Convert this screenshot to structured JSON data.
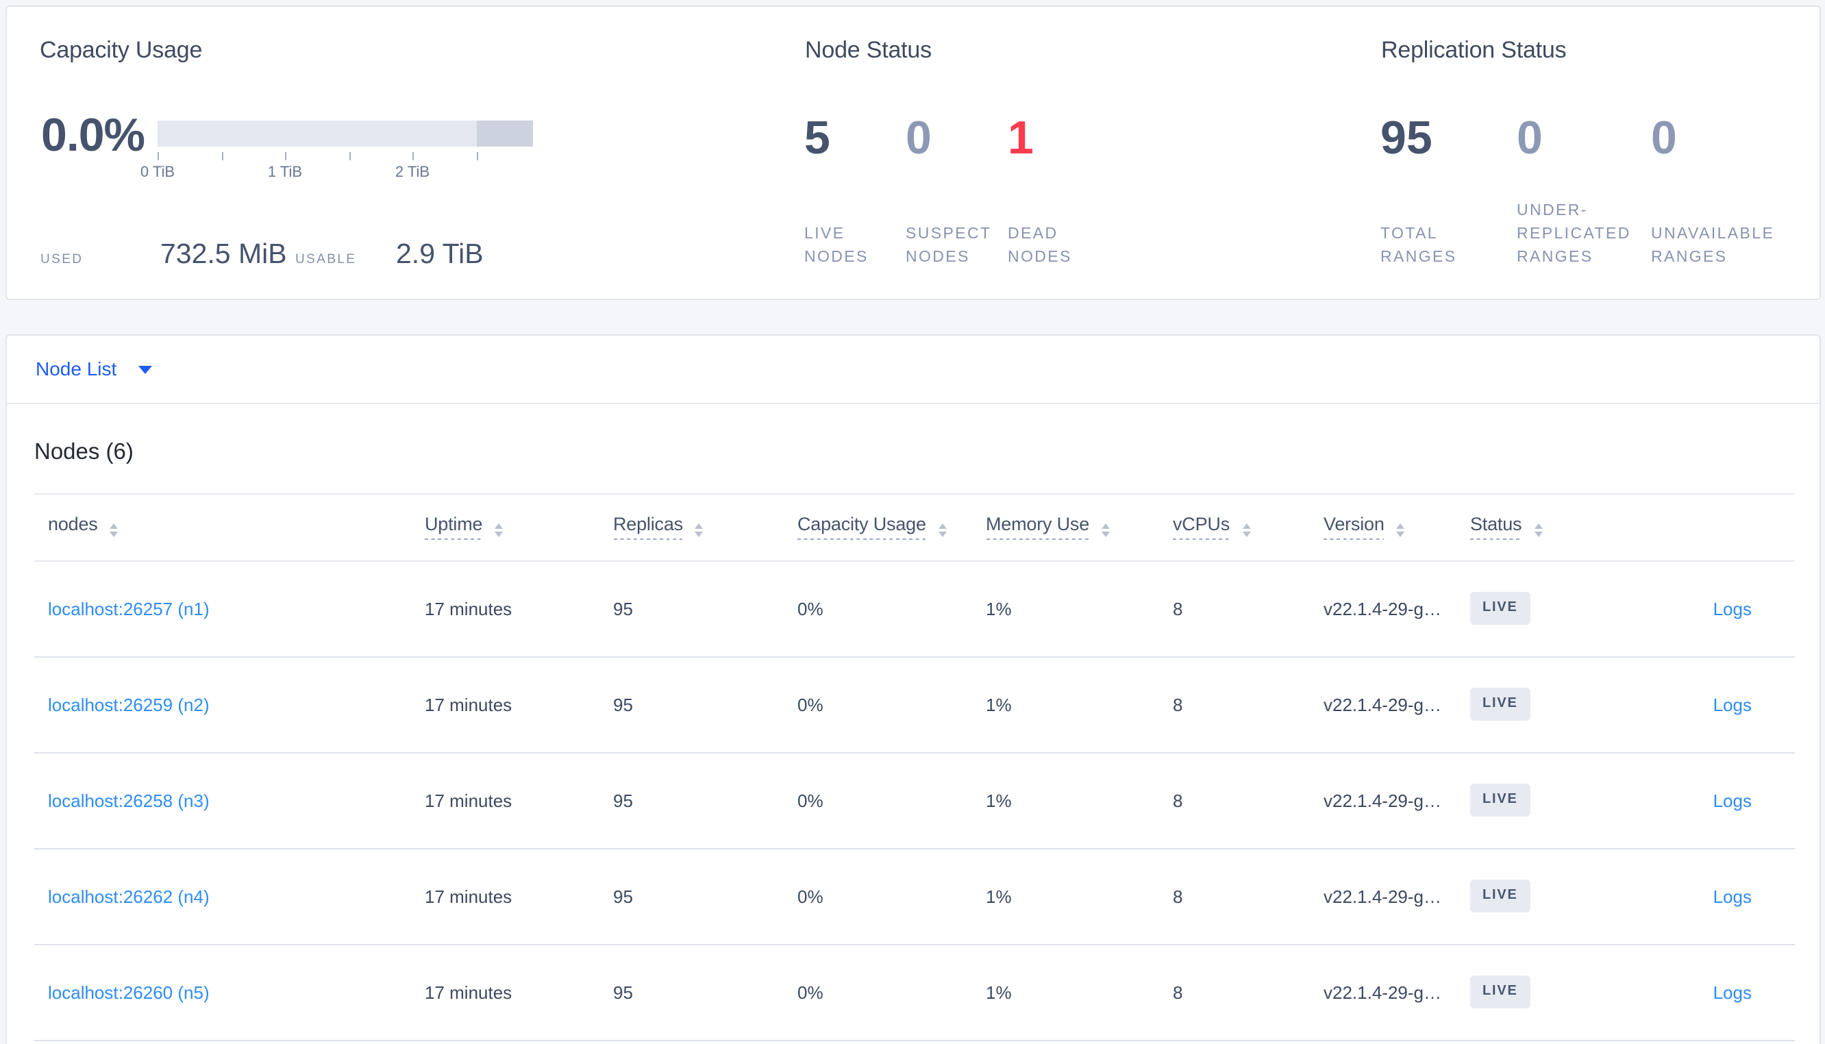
{
  "summary": {
    "capacity": {
      "title": "Capacity Usage",
      "percent": "0.0%",
      "ticks": [
        "0 TiB",
        "1 TiB",
        "2 TiB"
      ],
      "used_label": "USED",
      "used_value": "732.5 MiB",
      "usable_label": "USABLE",
      "usable_value": "2.9 TiB"
    },
    "node_status": {
      "title": "Node Status",
      "stats": [
        {
          "value": "5",
          "label": "LIVE NODES",
          "tone": "dark"
        },
        {
          "value": "0",
          "label": "SUSPECT NODES",
          "tone": "muted"
        },
        {
          "value": "1",
          "label": "DEAD NODES",
          "tone": "danger"
        }
      ]
    },
    "replication": {
      "title": "Replication Status",
      "stats": [
        {
          "value": "95",
          "label": "TOTAL RANGES",
          "tone": "dark"
        },
        {
          "value": "0",
          "label": "UNDER-REPLICATED RANGES",
          "tone": "muted"
        },
        {
          "value": "0",
          "label": "UNAVAILABLE RANGES",
          "tone": "muted"
        }
      ]
    }
  },
  "view_selector": {
    "label": "Node List"
  },
  "nodes_table": {
    "title": "Nodes (6)",
    "columns": [
      {
        "label": "nodes",
        "underlined": false
      },
      {
        "label": "Uptime",
        "underlined": true
      },
      {
        "label": "Replicas",
        "underlined": true
      },
      {
        "label": "Capacity Usage",
        "underlined": true
      },
      {
        "label": "Memory Use",
        "underlined": true
      },
      {
        "label": "vCPUs",
        "underlined": true
      },
      {
        "label": "Version",
        "underlined": true
      },
      {
        "label": "Status",
        "underlined": true
      },
      {
        "label": "",
        "underlined": false
      }
    ],
    "rows": [
      {
        "address": "localhost:26257 (n1)",
        "uptime": "17 minutes",
        "replicas": "95",
        "capacity": "0%",
        "memory": "1%",
        "vcpus": "8",
        "version": "v22.1.4-29-g…",
        "status": "LIVE",
        "logs": "Logs"
      },
      {
        "address": "localhost:26259 (n2)",
        "uptime": "17 minutes",
        "replicas": "95",
        "capacity": "0%",
        "memory": "1%",
        "vcpus": "8",
        "version": "v22.1.4-29-g…",
        "status": "LIVE",
        "logs": "Logs"
      },
      {
        "address": "localhost:26258 (n3)",
        "uptime": "17 minutes",
        "replicas": "95",
        "capacity": "0%",
        "memory": "1%",
        "vcpus": "8",
        "version": "v22.1.4-29-g…",
        "status": "LIVE",
        "logs": "Logs"
      },
      {
        "address": "localhost:26262 (n4)",
        "uptime": "17 minutes",
        "replicas": "95",
        "capacity": "0%",
        "memory": "1%",
        "vcpus": "8",
        "version": "v22.1.4-29-g…",
        "status": "LIVE",
        "logs": "Logs"
      },
      {
        "address": "localhost:26260 (n5)",
        "uptime": "17 minutes",
        "replicas": "95",
        "capacity": "0%",
        "memory": "1%",
        "vcpus": "8",
        "version": "v22.1.4-29-g…",
        "status": "LIVE",
        "logs": "Logs"
      }
    ]
  },
  "colors": {
    "background": "#f4f6fa",
    "card_border": "#e0e4ea",
    "accent_blue": "#1e5cf1",
    "link_blue": "#2e8df2",
    "danger_red": "#ff3b4f",
    "dark_stat": "#46536d",
    "muted_stat": "#8d99b4"
  }
}
